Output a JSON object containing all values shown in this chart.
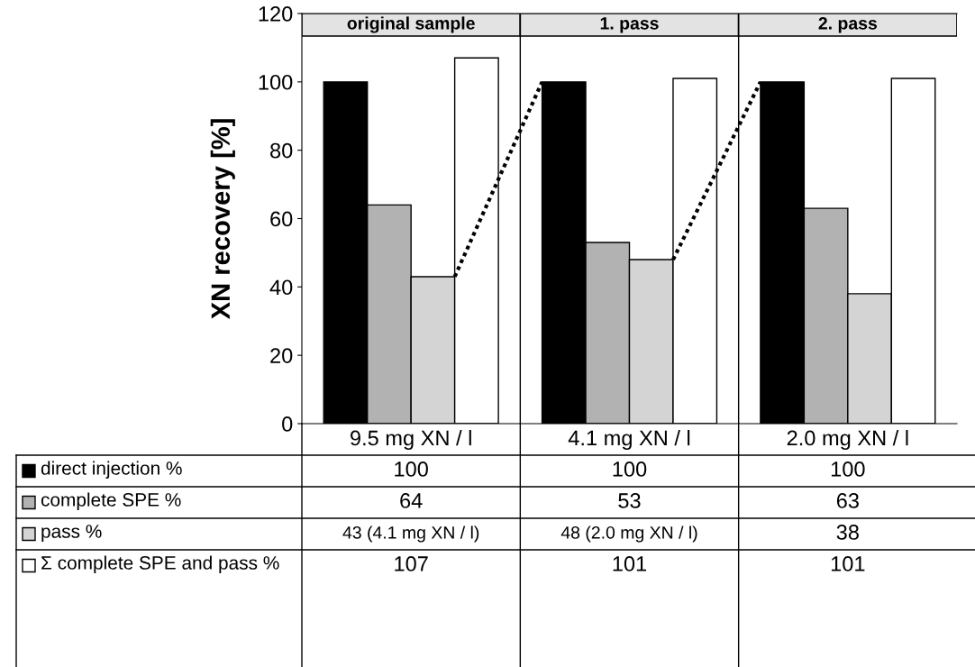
{
  "chart_data": {
    "type": "bar",
    "ylabel": "XN recovery [%]",
    "categories": [
      "9.5 mg XN / l",
      "4.1 mg XN / l",
      "2.0 mg XN / l"
    ],
    "annotations": [
      "original sample",
      "1. pass",
      "2. pass"
    ],
    "series": [
      {
        "name": "direct injection %",
        "color": "#000000",
        "values": [
          100,
          100,
          100
        ],
        "value_labels": [
          "100",
          "100",
          "100"
        ]
      },
      {
        "name": "complete SPE %",
        "color": "#b2b2b2",
        "values": [
          64,
          53,
          63
        ],
        "value_labels": [
          "64",
          "53",
          "63"
        ]
      },
      {
        "name": "pass %",
        "color": "#d4d4d4",
        "values": [
          43,
          48,
          38
        ],
        "value_labels": [
          "43 (4.1 mg XN / l)",
          "48 (2.0 mg XN / l)",
          "38"
        ]
      },
      {
        "name": "Σ complete SPE and pass %",
        "color": "#ffffff",
        "values": [
          107,
          101,
          101
        ],
        "value_labels": [
          "107",
          "101",
          "101"
        ]
      }
    ],
    "ylim": [
      0,
      120
    ],
    "yticks": [
      0,
      20,
      40,
      60,
      80,
      100,
      120
    ],
    "grid": false,
    "legend": "left"
  }
}
